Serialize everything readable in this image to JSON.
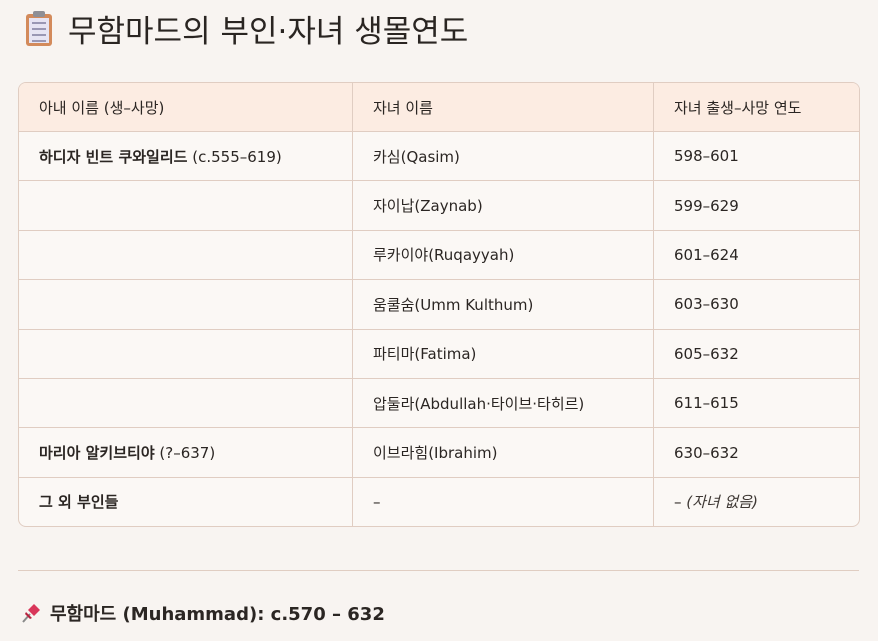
{
  "title": {
    "icon": "clipboard-icon",
    "text": "무함마드의 부인·자녀 생몰연도"
  },
  "table": {
    "headers": [
      "아내 이름 (생–사망)",
      "자녀 이름",
      "자녀 출생–사망 연도"
    ],
    "rows": [
      {
        "wife_name": "하디자 빈트 쿠와일리드",
        "wife_years": "(c.555–619)",
        "child": "카심(Qasim)",
        "years": "598–601"
      },
      {
        "wife_name": "",
        "wife_years": "",
        "child": "자이납(Zaynab)",
        "years": "599–629"
      },
      {
        "wife_name": "",
        "wife_years": "",
        "child": "루카이야(Ruqayyah)",
        "years": "601–624"
      },
      {
        "wife_name": "",
        "wife_years": "",
        "child": "움쿨숨(Umm Kulthum)",
        "years": "603–630"
      },
      {
        "wife_name": "",
        "wife_years": "",
        "child": "파티마(Fatima)",
        "years": "605–632"
      },
      {
        "wife_name": "",
        "wife_years": "",
        "child": "압둘라(Abdullah·타이브·타히르)",
        "years": "611–615"
      },
      {
        "wife_name": "마리아 알키브티야",
        "wife_years": "(?–637)",
        "child": "이브라힘(Ibrahim)",
        "years": "630–632"
      },
      {
        "wife_name": "그 외 부인들",
        "wife_years": "",
        "child": "–",
        "years": "–",
        "years_note": "(자녀 없음)"
      }
    ]
  },
  "footer": {
    "icon": "pushpin-icon",
    "text": "무함마드 (Muhammad): c.570 – 632"
  }
}
